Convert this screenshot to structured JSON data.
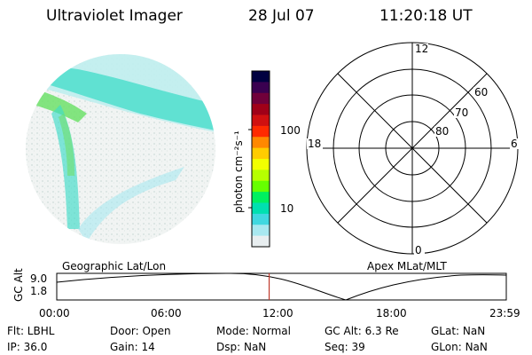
{
  "header": {
    "title": "Ultraviolet Imager",
    "date": "28 Jul 07",
    "time": "11:20:18 UT"
  },
  "colorbar": {
    "label": "photon cm⁻²s⁻¹",
    "ticks": [
      "100",
      "10"
    ],
    "colors": [
      "#000040",
      "#3a0050",
      "#70003a",
      "#a00018",
      "#d01010",
      "#ff2a00",
      "#ff8800",
      "#ffcc00",
      "#f2ff00",
      "#b6ff00",
      "#66ff00",
      "#00f060",
      "#00e0b0",
      "#40d8e0",
      "#a8e8f0",
      "#e8eef0"
    ]
  },
  "polar": {
    "top_label": "12",
    "bottom_label": "0",
    "left_label": "18",
    "right_label": "6",
    "ring_labels": [
      "60",
      "70",
      "80"
    ]
  },
  "timeline": {
    "left_title": "Geographic Lat/Lon",
    "right_title": "Apex  MLat/MLT",
    "axis_label": "GC Alt",
    "y_ticks": [
      "9.0",
      "1.8"
    ],
    "x_ticks": [
      "00:00",
      "06:00",
      "12:00",
      "18:00",
      "23:59"
    ],
    "current_time_fraction": 0.4725
  },
  "info": {
    "flt": "Flt: LBHL",
    "ip": "IP: 36.0",
    "door": "Door: Open",
    "gain": "Gain: 14",
    "mode": "Mode: Normal",
    "dsp": "Dsp:      NaN",
    "gcalt": "GC Alt: 6.3 Re",
    "seq": "Seq: 39",
    "glat": "GLat:      NaN",
    "glon": "GLon:      NaN"
  },
  "colors": {
    "emission_bright": "#6fe06a",
    "emission_mid": "#3fdcc8",
    "emission_low": "#c8e9ea",
    "timeline_marker": "#c0392b"
  }
}
